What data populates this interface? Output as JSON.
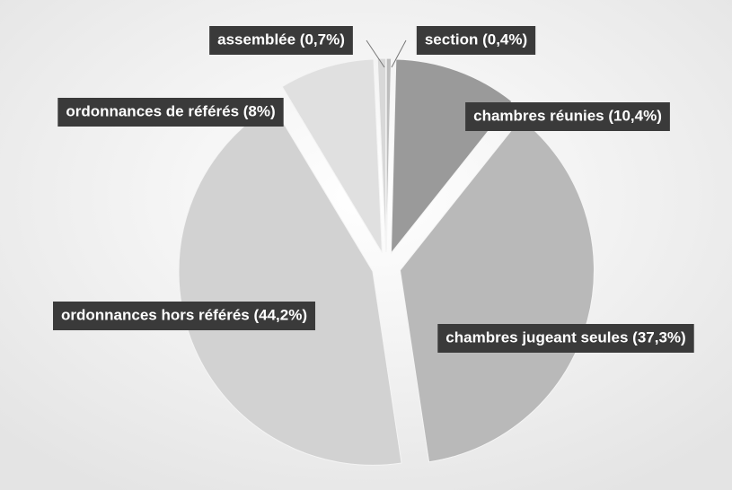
{
  "chart_data": {
    "type": "pie",
    "values": [
      0.4,
      10.4,
      37.3,
      44.2,
      8,
      0.7
    ],
    "value_labels": [
      "section (0,4%)",
      "chambres réunies (10,4%)",
      "chambres jugeant seules (37,3%)",
      "ordonnances hors référés (44,2%)",
      "ordonnances de référés (8%)",
      "assemblée (0,7%)"
    ],
    "colors": [
      "#bdbdbd",
      "#9a9a9a",
      "#b9b9b9",
      "#d2d2d2",
      "#e0e0e0",
      "#d8d8d8"
    ]
  }
}
